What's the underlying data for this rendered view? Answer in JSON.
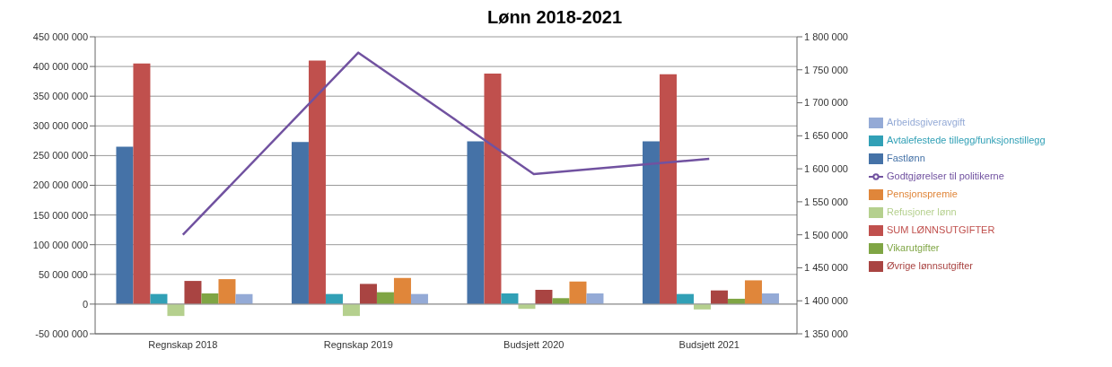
{
  "chart_data": {
    "type": "bar",
    "title": "Lønn 2018-2021",
    "categories": [
      "Regnskap 2018",
      "Regnskap 2019",
      "Budsjett 2020",
      "Budsjett 2021"
    ],
    "series": [
      {
        "name": "Fastlønn",
        "color": "#4572a7",
        "values": [
          265000000,
          273000000,
          274000000,
          274000000
        ]
      },
      {
        "name": "SUM LØNNSUTGIFTER",
        "color": "#c0504d",
        "values": [
          405000000,
          410000000,
          388000000,
          387000000
        ]
      },
      {
        "name": "Avtalefestede tillegg/funksjonstillegg",
        "color": "#31a0b6",
        "values": [
          17000000,
          17000000,
          18000000,
          17000000
        ]
      },
      {
        "name": "Refusjoner lønn",
        "color": "#b5d08e",
        "values": [
          -20000000,
          -20000000,
          -8000000,
          -9000000
        ]
      },
      {
        "name": "Øvrige lønnsutgifter",
        "color": "#a94442",
        "values": [
          39000000,
          34000000,
          24000000,
          23000000
        ]
      },
      {
        "name": "Vikarutgifter",
        "color": "#7fa544",
        "values": [
          18000000,
          20000000,
          10000000,
          9000000
        ]
      },
      {
        "name": "Pensjonspremie",
        "color": "#e0863a",
        "values": [
          42000000,
          44000000,
          38000000,
          40000000
        ]
      },
      {
        "name": "Arbeidsgiveravgift",
        "color": "#94aad6",
        "values": [
          17000000,
          17000000,
          18000000,
          18000000
        ]
      },
      {
        "name": "Godtgjørelser til politikerne",
        "type": "line",
        "axis": "y2",
        "color": "#7152a0",
        "values": [
          1500000,
          1776000,
          1592000,
          1615000
        ]
      }
    ],
    "ylim": [
      -50000000,
      450000000
    ],
    "yticks": [
      {
        "value": -50000000,
        "label": "-50 000 000"
      },
      {
        "value": 0,
        "label": "0"
      },
      {
        "value": 50000000,
        "label": "50 000 000"
      },
      {
        "value": 100000000,
        "label": "100 000 000"
      },
      {
        "value": 150000000,
        "label": "150 000 000"
      },
      {
        "value": 200000000,
        "label": "200 000 000"
      },
      {
        "value": 250000000,
        "label": "250 000 000"
      },
      {
        "value": 300000000,
        "label": "300 000 000"
      },
      {
        "value": 350000000,
        "label": "350 000 000"
      },
      {
        "value": 400000000,
        "label": "400 000 000"
      },
      {
        "value": 450000000,
        "label": "450 000 000"
      }
    ],
    "y2lim": [
      1350000,
      1800000
    ],
    "y2ticks": [
      {
        "value": 1350000,
        "label": "1 350 000"
      },
      {
        "value": 1400000,
        "label": "1 400 000"
      },
      {
        "value": 1450000,
        "label": "1 450 000"
      },
      {
        "value": 1500000,
        "label": "1 500 000"
      },
      {
        "value": 1550000,
        "label": "1 550 000"
      },
      {
        "value": 1600000,
        "label": "1 600 000"
      },
      {
        "value": 1650000,
        "label": "1 650 000"
      },
      {
        "value": 1700000,
        "label": "1 700 000"
      },
      {
        "value": 1750000,
        "label": "1 750 000"
      },
      {
        "value": 1800000,
        "label": "1 800 000"
      }
    ],
    "grid": "y",
    "legend": "right",
    "marker": "none",
    "line_style": "solid"
  }
}
